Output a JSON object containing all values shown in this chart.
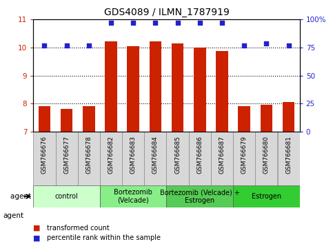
{
  "title": "GDS4089 / ILMN_1787919",
  "samples": [
    "GSM766676",
    "GSM766677",
    "GSM766678",
    "GSM766682",
    "GSM766683",
    "GSM766684",
    "GSM766685",
    "GSM766686",
    "GSM766687",
    "GSM766679",
    "GSM766680",
    "GSM766681"
  ],
  "bar_values": [
    7.92,
    7.82,
    7.92,
    10.22,
    10.05,
    10.22,
    10.15,
    10.0,
    9.88,
    7.92,
    7.95,
    8.05
  ],
  "dot_values": [
    77,
    77,
    77,
    97,
    97,
    97,
    97,
    97,
    97,
    77,
    79,
    77
  ],
  "ylim": [
    7,
    11
  ],
  "y2lim": [
    0,
    100
  ],
  "yticks": [
    7,
    8,
    9,
    10,
    11
  ],
  "y2ticks": [
    0,
    25,
    50,
    75,
    100
  ],
  "y2ticklabels": [
    "0",
    "25",
    "50",
    "75",
    "100%"
  ],
  "group_defs": [
    {
      "start": 0,
      "end": 3,
      "label": "control",
      "color": "#ccffcc"
    },
    {
      "start": 3,
      "end": 6,
      "label": "Bortezomib\n(Velcade)",
      "color": "#88ee88"
    },
    {
      "start": 6,
      "end": 9,
      "label": "Bortezomib (Velcade) +\nEstrogen",
      "color": "#55cc55"
    },
    {
      "start": 9,
      "end": 12,
      "label": "Estrogen",
      "color": "#33cc33"
    }
  ],
  "bar_color": "#cc2200",
  "dot_color": "#2222cc",
  "bar_bottom": 7,
  "title_fontsize": 10,
  "tick_fontsize": 7.5,
  "label_fontsize": 6.5,
  "group_fontsize": 7
}
